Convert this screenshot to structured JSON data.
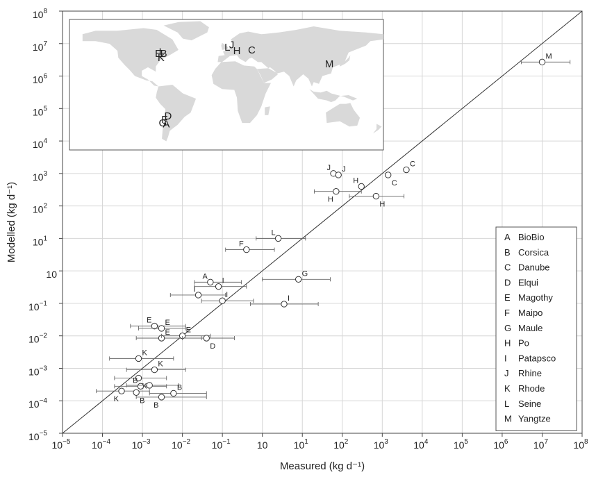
{
  "chart_data": {
    "type": "scatter",
    "xlabel": "Measured (kg d⁻¹)",
    "ylabel": "Modelled (kg d⁻¹)",
    "scale": "log",
    "xlim": [
      "1e-5",
      "1e8"
    ],
    "ylim": [
      "1e-5",
      "1e8"
    ],
    "grid": true,
    "reference_line": "1:1",
    "x_ticks": [
      {
        "base": "10",
        "exp": "−5"
      },
      {
        "base": "10",
        "exp": "−4"
      },
      {
        "base": "10",
        "exp": "−3"
      },
      {
        "base": "10",
        "exp": "−2"
      },
      {
        "base": "10",
        "exp": "−1"
      },
      {
        "base": "10",
        "exp": ""
      },
      {
        "base": "10",
        "exp": "1"
      },
      {
        "base": "10",
        "exp": "2"
      },
      {
        "base": "10",
        "exp": "3"
      },
      {
        "base": "10",
        "exp": "4"
      },
      {
        "base": "10",
        "exp": "5"
      },
      {
        "base": "10",
        "exp": "6"
      },
      {
        "base": "10",
        "exp": "7"
      },
      {
        "base": "10",
        "exp": "8"
      }
    ],
    "y_ticks": [
      {
        "base": "10",
        "exp": "−5"
      },
      {
        "base": "10",
        "exp": "−4"
      },
      {
        "base": "10",
        "exp": "−3"
      },
      {
        "base": "10",
        "exp": "−2"
      },
      {
        "base": "10",
        "exp": "−1"
      },
      {
        "base": "10",
        "exp": ""
      },
      {
        "base": "10",
        "exp": "1"
      },
      {
        "base": "10",
        "exp": "2"
      },
      {
        "base": "10",
        "exp": "3"
      },
      {
        "base": "10",
        "exp": "4"
      },
      {
        "base": "10",
        "exp": "5"
      },
      {
        "base": "10",
        "exp": "6"
      },
      {
        "base": "10",
        "exp": "7"
      },
      {
        "base": "10",
        "exp": "8"
      }
    ],
    "points": [
      {
        "label": "M",
        "x": "1e7",
        "y": "2.7e6",
        "xerr": [
          "3e6",
          "5e7"
        ],
        "label_pos": "upper-right"
      },
      {
        "label": "J",
        "x": "60",
        "y": "1000",
        "label_pos": "upper-left"
      },
      {
        "label": "J",
        "x": "80",
        "y": "900",
        "label_pos": "upper-right"
      },
      {
        "label": "C",
        "x": "1400",
        "y": "900",
        "label_pos": "lower-right"
      },
      {
        "label": "C",
        "x": "4000",
        "y": "1300",
        "label_pos": "upper-right"
      },
      {
        "label": "H",
        "x": "300",
        "y": "400",
        "label_pos": "upper-left"
      },
      {
        "label": "H",
        "x": "70",
        "y": "280",
        "xerr": [
          "20",
          "300"
        ],
        "label_pos": "lower-left"
      },
      {
        "label": "H",
        "x": "700",
        "y": "200",
        "xerr": [
          "150",
          "3500"
        ],
        "label_pos": "lower-right"
      },
      {
        "label": "L",
        "x": "2.5",
        "y": "10",
        "xerr": [
          "0.7",
          "12"
        ],
        "label_pos": "upper-left"
      },
      {
        "label": "F",
        "x": "0.4",
        "y": "4.5",
        "xerr": [
          "0.12",
          "2"
        ],
        "label_pos": "upper-left"
      },
      {
        "label": "G",
        "x": "8",
        "y": "0.55",
        "xerr": [
          "1",
          "50"
        ],
        "label_pos": "upper-right"
      },
      {
        "label": "A",
        "x": "0.05",
        "y": "0.45",
        "xerr": [
          "0.02",
          "0.3"
        ],
        "label_pos": "upper-left"
      },
      {
        "label": "I",
        "x": "0.08",
        "y": "0.33",
        "xerr": [
          "0.02",
          "0.4"
        ],
        "label_pos": "upper-right"
      },
      {
        "label": "I",
        "x": "0.025",
        "y": "0.18",
        "xerr": [
          "0.005",
          "0.12"
        ],
        "label_pos": "upper-left"
      },
      {
        "label": "I",
        "x": "0.1",
        "y": "0.12",
        "xerr": [
          "0.03",
          "0.6"
        ],
        "label_pos": "upper-right"
      },
      {
        "label": "I",
        "x": "3.5",
        "y": "0.095",
        "xerr": [
          "0.5",
          "25"
        ],
        "label_pos": "upper-right"
      },
      {
        "label": "E",
        "x": "0.002",
        "y": "0.02",
        "xerr": [
          "0.0005",
          "0.012"
        ],
        "label_pos": "upper-left"
      },
      {
        "label": "E",
        "x": "0.003",
        "y": "0.017",
        "xerr": [
          "0.0008",
          "0.012"
        ],
        "label_pos": "upper-right"
      },
      {
        "label": "E",
        "x": "0.003",
        "y": "0.0085",
        "xerr": [
          "0.0007",
          "0.03"
        ],
        "label_pos": "upper-right"
      },
      {
        "label": "E",
        "x": "0.01",
        "y": "0.01",
        "xerr": [
          "0.003",
          "0.05"
        ],
        "label_pos": "upper-right"
      },
      {
        "label": "D",
        "x": "0.04",
        "y": "0.0085",
        "xerr": [
          "0.01",
          "0.2"
        ],
        "label_pos": "lower-right"
      },
      {
        "label": "K",
        "x": "0.0008",
        "y": "0.002",
        "xerr": [
          "0.00015",
          "0.006"
        ],
        "label_pos": "upper-right"
      },
      {
        "label": "K",
        "x": "0.002",
        "y": "0.0009",
        "xerr": [
          "0.0004",
          "0.012"
        ],
        "label_pos": "upper-right"
      },
      {
        "label": "K",
        "x": "0.0008",
        "y": "0.0005",
        "xerr": [
          "0.0002",
          "0.004"
        ],
        "label_pos": "lower-right"
      },
      {
        "label": "K",
        "x": "0.0003",
        "y": "0.0002",
        "xerr": [
          "0.00007",
          "0.0015"
        ],
        "label_pos": "lower-left"
      },
      {
        "label": "B",
        "x": "0.0009",
        "y": "0.00028",
        "xerr": [
          "0.0002",
          "0.004"
        ],
        "label_pos": "upper-left"
      },
      {
        "label": "B",
        "x": "0.0015",
        "y": "0.0003",
        "xerr": [
          "0.0004",
          "0.008"
        ],
        "label_pos": "none"
      },
      {
        "label": "B",
        "x": "0.006",
        "y": "0.00017",
        "xerr": [
          "0.0015",
          "0.04"
        ],
        "label_pos": "upper-right"
      },
      {
        "label": "B",
        "x": "0.003",
        "y": "0.00013",
        "xerr": [
          "0.0007",
          "0.04"
        ],
        "label_pos": "lower-left"
      },
      {
        "label": "B",
        "x": "0.0007",
        "y": "0.00018",
        "label_pos": "lower-right"
      }
    ],
    "legend": {
      "position": "bottom-right",
      "entries": [
        {
          "code": "A",
          "name": "BioBio"
        },
        {
          "code": "B",
          "name": "Corsica"
        },
        {
          "code": "C",
          "name": "Danube"
        },
        {
          "code": "D",
          "name": "Elqui"
        },
        {
          "code": "E",
          "name": "Magothy"
        },
        {
          "code": "F",
          "name": "Maipo"
        },
        {
          "code": "G",
          "name": "Maule"
        },
        {
          "code": "H",
          "name": "Po"
        },
        {
          "code": "I",
          "name": "Patapsco"
        },
        {
          "code": "J",
          "name": "Rhine"
        },
        {
          "code": "K",
          "name": "Rhode"
        },
        {
          "code": "L",
          "name": "Seine"
        },
        {
          "code": "M",
          "name": "Yangtze"
        }
      ]
    },
    "inset_map": {
      "position": "top-left",
      "land_color": "#d9d9d9",
      "labels": [
        {
          "text": "E",
          "lon": -78,
          "lat": 42
        },
        {
          "text": "I",
          "lon": -76,
          "lat": 44
        },
        {
          "text": "B",
          "lon": -72,
          "lat": 42
        },
        {
          "text": "K",
          "lon": -75,
          "lat": 37
        },
        {
          "text": "L",
          "lon": 1,
          "lat": 49
        },
        {
          "text": "J",
          "lon": 6,
          "lat": 52
        },
        {
          "text": "H",
          "lon": 12,
          "lat": 45
        },
        {
          "text": "C",
          "lon": 29,
          "lat": 46
        },
        {
          "text": "M",
          "lon": 118,
          "lat": 30
        },
        {
          "text": "D",
          "lon": -67,
          "lat": -30
        },
        {
          "text": "F",
          "lon": -71,
          "lat": -34
        },
        {
          "text": "G",
          "lon": -73,
          "lat": -38
        },
        {
          "text": "A",
          "lon": -69,
          "lat": -39
        }
      ]
    }
  }
}
